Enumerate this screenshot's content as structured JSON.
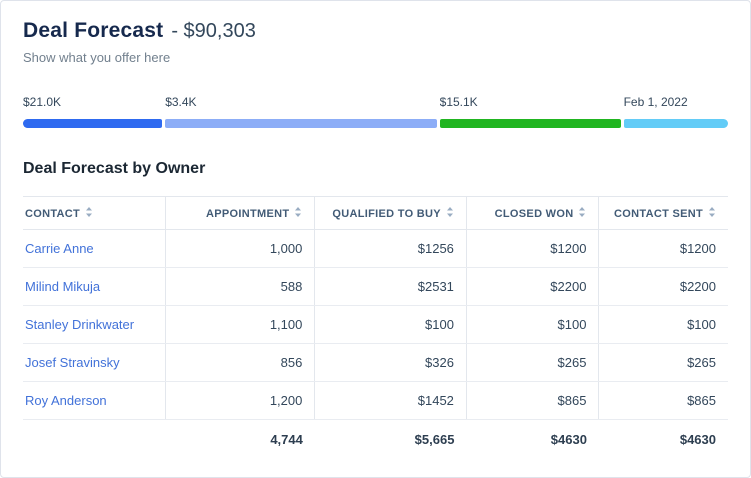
{
  "header": {
    "title": "Deal Forecast",
    "amount": "- $90,303",
    "subtitle": "Show what you offer here"
  },
  "progress": {
    "segments": [
      {
        "label": "$21.0K",
        "color": "#2e6af0",
        "percent": 20
      },
      {
        "label": "$3.4K",
        "color": "#8cadf7",
        "percent": 39
      },
      {
        "label": "$15.1K",
        "color": "#21b521",
        "percent": 26
      },
      {
        "label": "Feb 1, 2022",
        "color": "#63ccf7",
        "percent": 15
      }
    ]
  },
  "table": {
    "title": "Deal Forecast by Owner",
    "columns": [
      "Contact",
      "Appointment",
      "Qualified to Buy",
      "Closed Won",
      "Contact Sent"
    ],
    "rows": [
      {
        "contact": "Carrie Anne",
        "appointment": "1,000",
        "qualified": "$1256",
        "closed": "$1200",
        "sent": "$1200"
      },
      {
        "contact": "Milind Mikuja",
        "appointment": "588",
        "qualified": "$2531",
        "closed": "$2200",
        "sent": "$2200"
      },
      {
        "contact": "Stanley Drinkwater",
        "appointment": "1,100",
        "qualified": "$100",
        "closed": "$100",
        "sent": "$100"
      },
      {
        "contact": "Josef Stravinsky",
        "appointment": "856",
        "qualified": "$326",
        "closed": "$265",
        "sent": "$265"
      },
      {
        "contact": "Roy Anderson",
        "appointment": "1,200",
        "qualified": "$1452",
        "closed": "$865",
        "sent": "$865"
      }
    ],
    "totals": {
      "appointment": "4,744",
      "qualified": "$5,665",
      "closed": "$4630",
      "sent": "$4630"
    }
  },
  "colors": {
    "link": "#4272d9",
    "title": "#16294d"
  }
}
